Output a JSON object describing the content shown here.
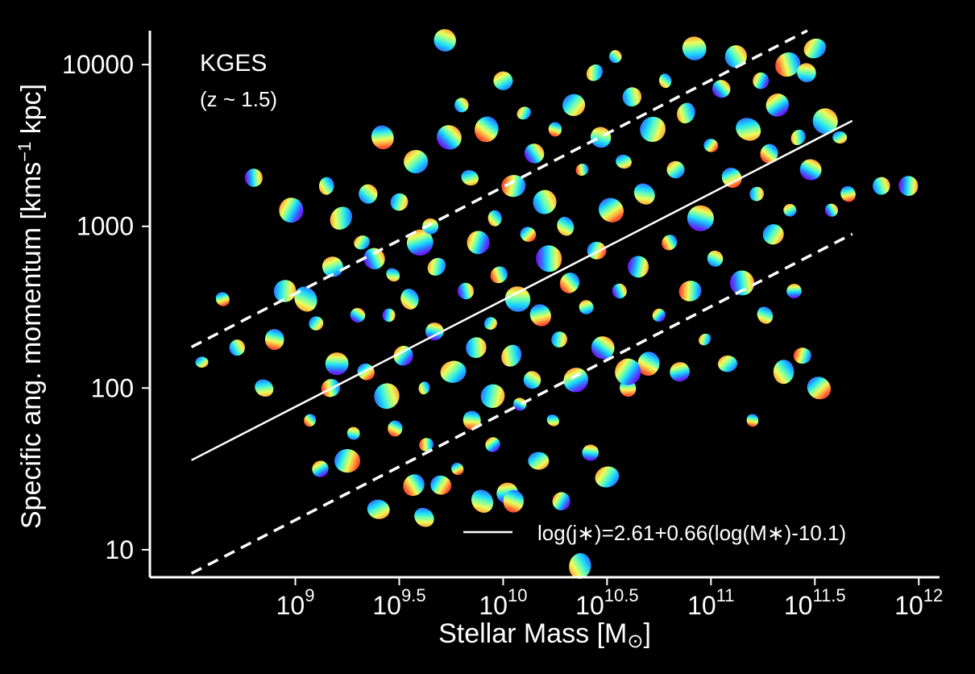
{
  "chart_data": {
    "type": "scatter",
    "title": "",
    "xlabel": "Stellar Mass [M",
    "xlabel_symbol": "⊙",
    "xlabel_close": "]",
    "ylabel": "Specific ang. momentum [kms",
    "ylabel_sup": "−1",
    "ylabel_end": " kpc]",
    "x_scale": "log",
    "y_scale": "log",
    "x_range_log": [
      8.3,
      12.1
    ],
    "y_range_log": [
      0.83,
      4.21
    ],
    "x_ticks": [
      {
        "base": "10",
        "exp": "9",
        "value": 9
      },
      {
        "base": "10",
        "exp": "9.5",
        "value": 9.5
      },
      {
        "base": "10",
        "exp": "10",
        "value": 10
      },
      {
        "base": "10",
        "exp": "10.5",
        "value": 10.5
      },
      {
        "base": "10",
        "exp": "11",
        "value": 11
      },
      {
        "base": "10",
        "exp": "11.5",
        "value": 11.5
      },
      {
        "base": "10",
        "exp": "12",
        "value": 12
      }
    ],
    "y_ticks": [
      {
        "label": "10",
        "value": 1
      },
      {
        "label": "100",
        "value": 2
      },
      {
        "label": "1000",
        "value": 3
      },
      {
        "label": "10000",
        "value": 4
      }
    ],
    "annotation_title": "KGES",
    "annotation_subtitle": "(z ~ 1.5)",
    "legend": {
      "placement": "bottom-right",
      "label": "log(j∗)=2.61+0.66(log(M∗)-10.1)"
    },
    "fit": {
      "intercept": 2.61,
      "slope": 0.66,
      "pivot": 10.1,
      "x_start": 8.5,
      "x_end": 11.68,
      "scatter_offset": 0.7
    },
    "grid": false,
    "marker_style": "velocity-map thumbnails (rainbow colormap)",
    "points": [
      [
        8.55,
        2.16
      ],
      [
        8.65,
        2.55
      ],
      [
        8.72,
        2.25
      ],
      [
        8.8,
        3.3
      ],
      [
        8.85,
        2.0
      ],
      [
        8.9,
        2.3
      ],
      [
        8.95,
        2.6
      ],
      [
        8.98,
        3.1
      ],
      [
        9.05,
        2.55
      ],
      [
        9.07,
        1.8
      ],
      [
        9.1,
        2.4
      ],
      [
        9.12,
        1.5
      ],
      [
        9.15,
        3.25
      ],
      [
        9.17,
        2.0
      ],
      [
        9.18,
        2.75
      ],
      [
        9.2,
        2.15
      ],
      [
        9.22,
        3.05
      ],
      [
        9.25,
        1.55
      ],
      [
        9.28,
        1.72
      ],
      [
        9.3,
        2.45
      ],
      [
        9.32,
        2.9
      ],
      [
        9.34,
        2.1
      ],
      [
        9.35,
        3.2
      ],
      [
        9.38,
        2.8
      ],
      [
        9.4,
        1.25
      ],
      [
        9.42,
        3.55
      ],
      [
        9.44,
        1.95
      ],
      [
        9.45,
        2.45
      ],
      [
        9.47,
        2.7
      ],
      [
        9.48,
        1.75
      ],
      [
        9.5,
        3.15
      ],
      [
        9.52,
        2.2
      ],
      [
        9.55,
        2.55
      ],
      [
        9.57,
        1.4
      ],
      [
        9.58,
        3.4
      ],
      [
        9.6,
        2.9
      ],
      [
        9.62,
        2.0
      ],
      [
        9.63,
        1.65
      ],
      [
        9.65,
        3.0
      ],
      [
        9.67,
        2.35
      ],
      [
        9.68,
        2.75
      ],
      [
        9.7,
        1.4
      ],
      [
        9.72,
        4.15
      ],
      [
        9.74,
        3.55
      ],
      [
        9.76,
        2.1
      ],
      [
        9.78,
        1.5
      ],
      [
        9.8,
        3.75
      ],
      [
        9.82,
        2.6
      ],
      [
        9.84,
        3.3
      ],
      [
        9.85,
        1.8
      ],
      [
        9.87,
        2.25
      ],
      [
        9.88,
        2.9
      ],
      [
        9.9,
        1.3
      ],
      [
        9.92,
        3.6
      ],
      [
        9.94,
        2.4
      ],
      [
        9.95,
        1.65
      ],
      [
        9.96,
        3.05
      ],
      [
        9.98,
        2.7
      ],
      [
        10.0,
        3.9
      ],
      [
        10.02,
        1.35
      ],
      [
        10.04,
        2.2
      ],
      [
        10.05,
        3.25
      ],
      [
        10.07,
        2.55
      ],
      [
        10.08,
        1.9
      ],
      [
        10.1,
        3.7
      ],
      [
        10.12,
        2.95
      ],
      [
        10.14,
        2.05
      ],
      [
        10.15,
        3.45
      ],
      [
        10.17,
        1.55
      ],
      [
        10.18,
        2.45
      ],
      [
        10.2,
        3.15
      ],
      [
        10.22,
        2.8
      ],
      [
        10.24,
        1.8
      ],
      [
        10.25,
        3.6
      ],
      [
        10.27,
        2.3
      ],
      [
        10.28,
        1.3
      ],
      [
        10.3,
        3.0
      ],
      [
        10.32,
        2.65
      ],
      [
        10.34,
        3.75
      ],
      [
        10.35,
        2.05
      ],
      [
        10.37,
        0.9
      ],
      [
        10.38,
        3.35
      ],
      [
        10.4,
        2.5
      ],
      [
        10.42,
        1.6
      ],
      [
        10.44,
        3.95
      ],
      [
        10.45,
        2.85
      ],
      [
        10.47,
        3.55
      ],
      [
        10.48,
        2.25
      ],
      [
        10.5,
        1.45
      ],
      [
        10.52,
        3.1
      ],
      [
        10.54,
        4.05
      ],
      [
        10.56,
        2.6
      ],
      [
        10.58,
        3.4
      ],
      [
        10.6,
        2.0
      ],
      [
        10.62,
        3.8
      ],
      [
        10.65,
        2.75
      ],
      [
        10.68,
        3.2
      ],
      [
        10.7,
        2.15
      ],
      [
        10.72,
        3.6
      ],
      [
        10.75,
        2.45
      ],
      [
        10.78,
        3.9
      ],
      [
        10.8,
        2.9
      ],
      [
        10.83,
        3.35
      ],
      [
        10.85,
        2.1
      ],
      [
        10.88,
        3.7
      ],
      [
        10.9,
        2.6
      ],
      [
        10.92,
        4.1
      ],
      [
        10.95,
        3.05
      ],
      [
        10.97,
        2.3
      ],
      [
        11.0,
        3.5
      ],
      [
        11.02,
        2.8
      ],
      [
        11.05,
        3.85
      ],
      [
        11.08,
        2.15
      ],
      [
        11.1,
        3.3
      ],
      [
        11.12,
        4.05
      ],
      [
        11.15,
        2.65
      ],
      [
        11.18,
        3.6
      ],
      [
        11.2,
        1.8
      ],
      [
        11.22,
        3.2
      ],
      [
        11.24,
        3.9
      ],
      [
        11.26,
        2.45
      ],
      [
        11.28,
        3.45
      ],
      [
        11.3,
        2.95
      ],
      [
        11.32,
        3.75
      ],
      [
        11.35,
        2.1
      ],
      [
        11.37,
        4.0
      ],
      [
        11.38,
        3.1
      ],
      [
        11.4,
        2.6
      ],
      [
        11.42,
        3.55
      ],
      [
        11.44,
        2.2
      ],
      [
        11.46,
        3.95
      ],
      [
        11.48,
        3.35
      ],
      [
        11.5,
        4.1
      ],
      [
        11.52,
        2.0
      ],
      [
        11.55,
        3.65
      ],
      [
        11.58,
        3.1
      ],
      [
        11.62,
        3.55
      ],
      [
        11.66,
        3.2
      ],
      [
        11.82,
        3.25
      ],
      [
        11.95,
        3.25
      ],
      [
        9.62,
        1.2
      ],
      [
        10.05,
        1.3
      ],
      [
        9.95,
        1.95
      ],
      [
        10.6,
        2.1
      ]
    ]
  }
}
